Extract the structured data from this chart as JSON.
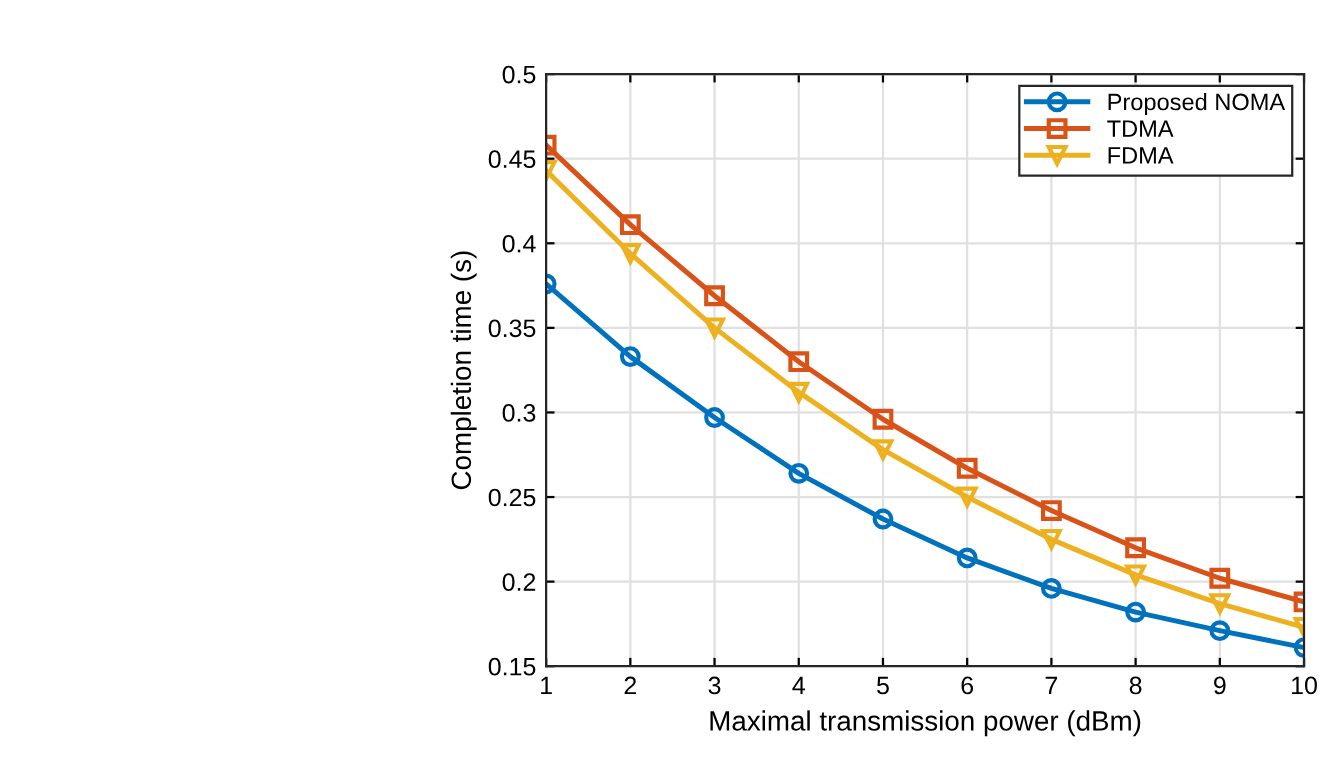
{
  "chart_data": {
    "type": "line",
    "xlabel": "Maximal transmission power (dBm)",
    "ylabel": "Completion time (s)",
    "x": [
      1,
      2,
      3,
      4,
      5,
      6,
      7,
      8,
      9,
      10
    ],
    "series": [
      {
        "name": "Proposed NOMA",
        "color": "#0072bd",
        "marker": "circle",
        "values": [
          0.376,
          0.333,
          0.297,
          0.264,
          0.237,
          0.214,
          0.196,
          0.182,
          0.171,
          0.161
        ]
      },
      {
        "name": "TDMA",
        "color": "#d95319",
        "marker": "square",
        "values": [
          0.458,
          0.411,
          0.369,
          0.33,
          0.296,
          0.267,
          0.242,
          0.22,
          0.202,
          0.188
        ]
      },
      {
        "name": "FDMA",
        "color": "#edb120",
        "marker": "triangle",
        "values": [
          0.443,
          0.394,
          0.35,
          0.312,
          0.278,
          0.25,
          0.225,
          0.204,
          0.187,
          0.173
        ]
      }
    ],
    "xlim": [
      1,
      10
    ],
    "xticks": [
      1,
      2,
      3,
      4,
      5,
      6,
      7,
      8,
      9,
      10
    ],
    "ylim": [
      0.15,
      0.5
    ],
    "yticks": [
      0.15,
      0.2,
      0.25,
      0.3,
      0.35,
      0.4,
      0.45,
      0.5
    ],
    "grid": true,
    "legend": "top right",
    "line_style": "solid"
  }
}
